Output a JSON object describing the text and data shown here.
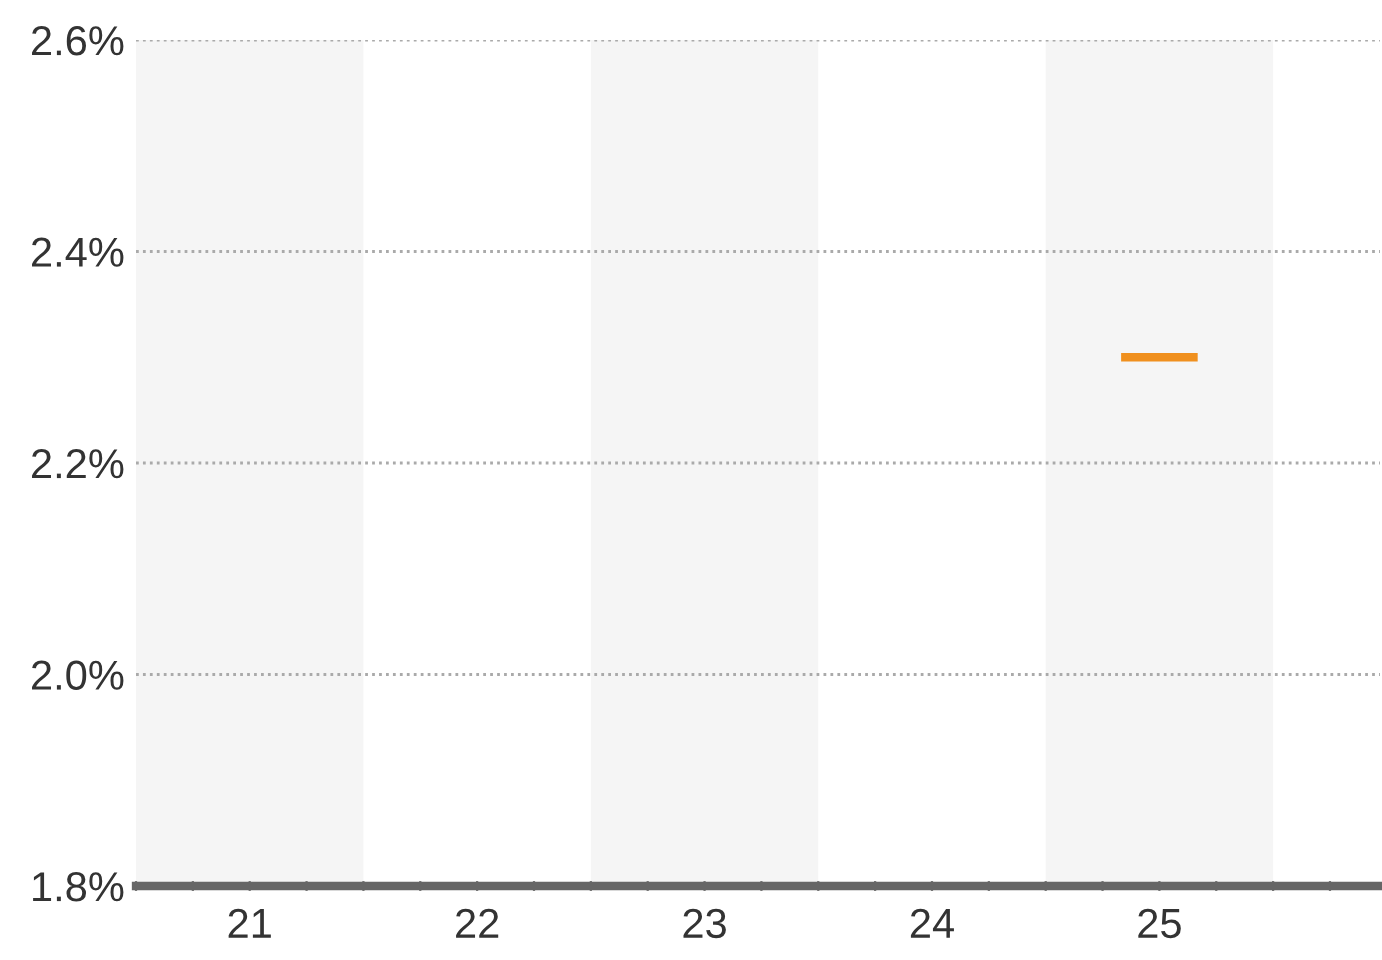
{
  "chart_data": {
    "type": "line",
    "x": [
      24.85,
      25.15
    ],
    "series": [
      {
        "color": "#f0901e",
        "values": [
          2.3,
          2.3
        ]
      }
    ],
    "xlim": [
      20.5,
      25.97
    ],
    "xticks": [
      {
        "value": 20.5,
        "label": null
      },
      {
        "value": 20.75,
        "label": null
      },
      {
        "value": 21,
        "label": "21"
      },
      {
        "value": 21.25,
        "label": null
      },
      {
        "value": 21.5,
        "label": null
      },
      {
        "value": 21.75,
        "label": null
      },
      {
        "value": 22,
        "label": "22"
      },
      {
        "value": 22.25,
        "label": null
      },
      {
        "value": 22.5,
        "label": null
      },
      {
        "value": 22.75,
        "label": null
      },
      {
        "value": 23,
        "label": "23"
      },
      {
        "value": 23.25,
        "label": null
      },
      {
        "value": 23.5,
        "label": null
      },
      {
        "value": 23.75,
        "label": null
      },
      {
        "value": 24,
        "label": "24"
      },
      {
        "value": 24.25,
        "label": null
      },
      {
        "value": 24.5,
        "label": null
      },
      {
        "value": 24.75,
        "label": null
      },
      {
        "value": 25,
        "label": "25"
      },
      {
        "value": 25.25,
        "label": null
      },
      {
        "value": 25.5,
        "label": null
      },
      {
        "value": 25.75,
        "label": null
      }
    ],
    "ylim": [
      1.8,
      2.6
    ],
    "yticks": [
      {
        "value": 1.8,
        "label": "1.8%"
      },
      {
        "value": 2.0,
        "label": "2.0%"
      },
      {
        "value": 2.2,
        "label": "2.2%"
      },
      {
        "value": 2.4,
        "label": "2.4%"
      },
      {
        "value": 2.6,
        "label": "2.6%"
      }
    ],
    "grid": "y",
    "bands": [
      {
        "axis": "x",
        "from": 20.5,
        "to": 21.5,
        "color": "#f5f5f5"
      },
      {
        "axis": "x",
        "from": 22.5,
        "to": 23.5,
        "color": "#f5f5f5"
      },
      {
        "axis": "x",
        "from": 24.5,
        "to": 25.5,
        "color": "#f5f5f5"
      }
    ]
  }
}
